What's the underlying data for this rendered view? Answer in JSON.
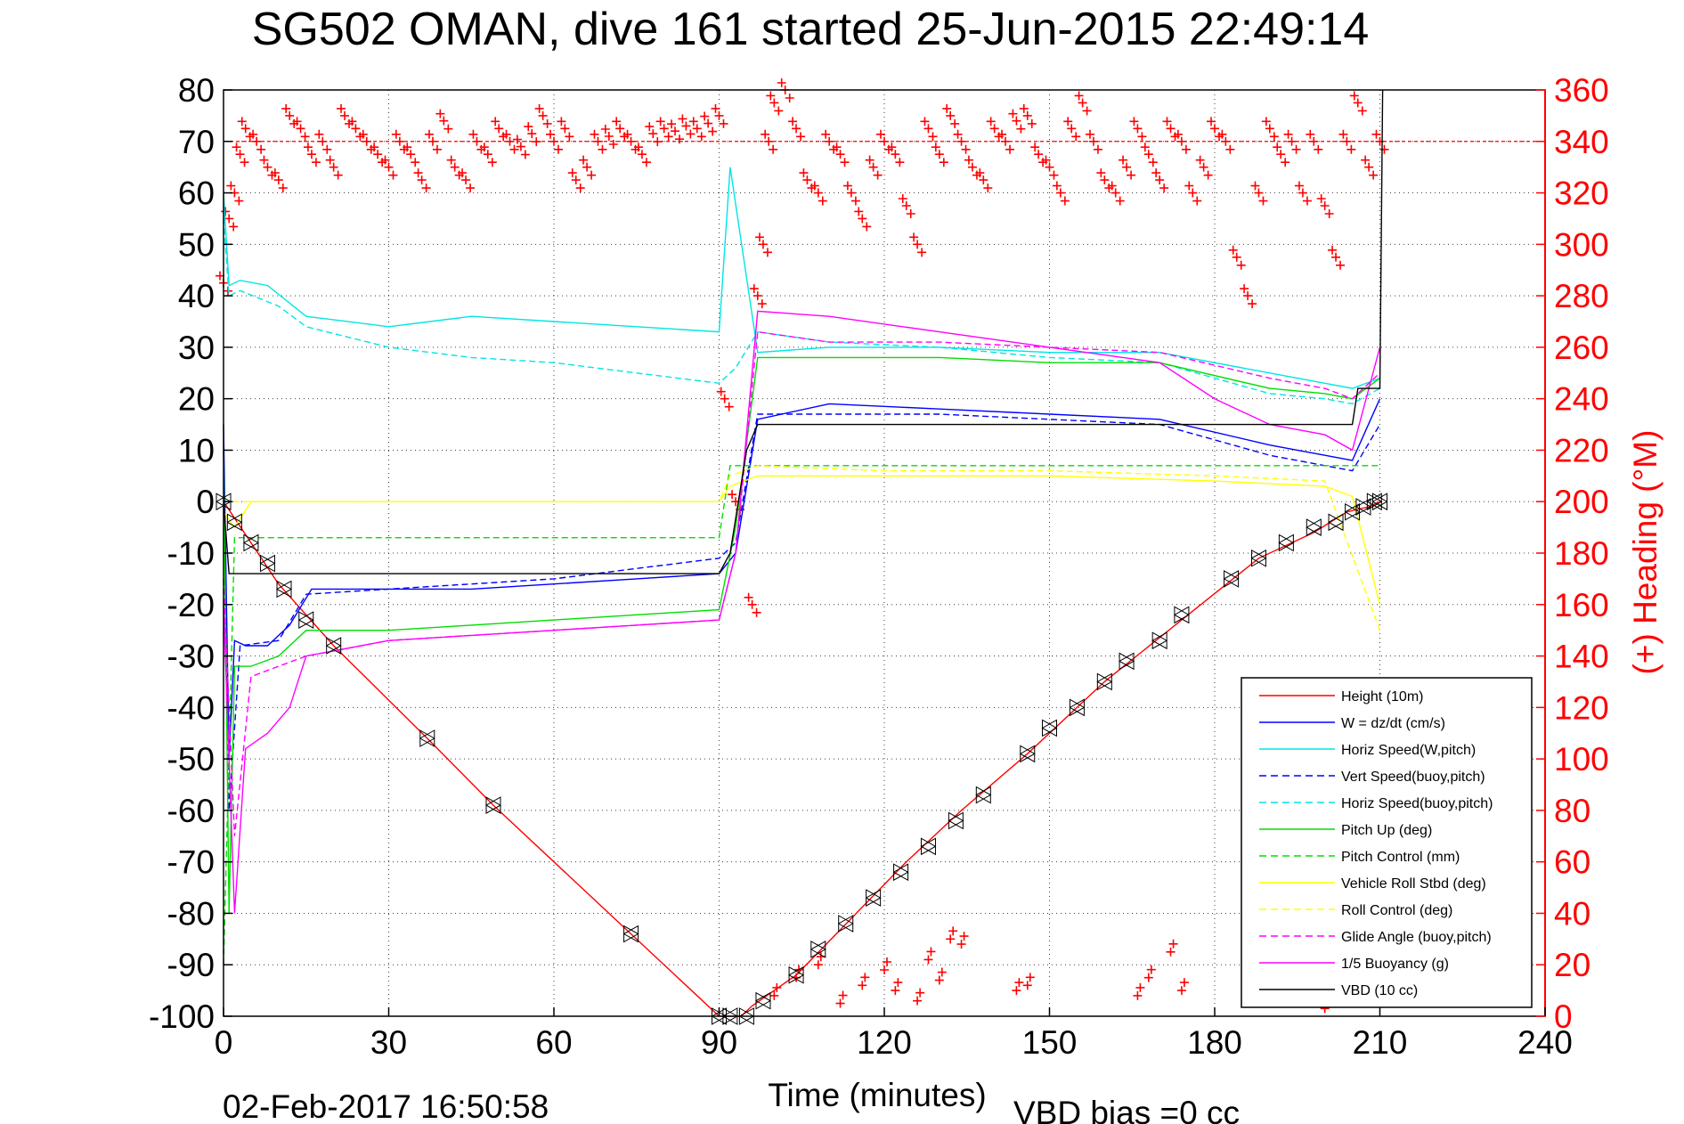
{
  "title": "SG502 OMAN, dive 161 started 25-Jun-2015 22:49:14",
  "footer_left": "02-Feb-2017 16:50:58",
  "footer_right": "VBD bias =0 cc",
  "chart_data": {
    "type": "line",
    "xlabel": "Time (minutes)",
    "ylabel": "",
    "y2label": "(+) Heading (°M)",
    "xlim": [
      0,
      240
    ],
    "ylim": [
      -100,
      80
    ],
    "y2lim": [
      0,
      360
    ],
    "xticks": [
      "0",
      "30",
      "60",
      "90",
      "120",
      "150",
      "180",
      "210",
      "240"
    ],
    "yticks": [
      "80",
      "70",
      "60",
      "50",
      "40",
      "30",
      "20",
      "10",
      "0",
      "-10",
      "-20",
      "-30",
      "-40",
      "-50",
      "-60",
      "-70",
      "-80",
      "-90",
      "-100"
    ],
    "y2ticks": [
      "360",
      "340",
      "320",
      "300",
      "280",
      "260",
      "240",
      "220",
      "200",
      "180",
      "160",
      "140",
      "120",
      "100",
      "80",
      "60",
      "40",
      "20",
      "0"
    ],
    "grid": true,
    "legend_position": "bottom-right",
    "series": [
      {
        "name": "Height (10m)",
        "color": "#ff0000",
        "style": "solid",
        "x": [
          0,
          10,
          20,
          37,
          49,
          74,
          90,
          94,
          96,
          104,
          114,
          124,
          134,
          146,
          160,
          174,
          188,
          198,
          204,
          208,
          210
        ],
        "y": [
          0,
          -16,
          -28,
          -46,
          -59,
          -84,
          -100,
          -100,
          -98,
          -92,
          -81,
          -70,
          -60,
          -49,
          -35,
          -23,
          -11,
          -6,
          -2,
          -1,
          0
        ]
      },
      {
        "name": "W = dz/dt (cm/s)",
        "color": "#0000ff",
        "style": "solid",
        "x": [
          0,
          1,
          2,
          4,
          8,
          12,
          16,
          30,
          45,
          60,
          75,
          90,
          93,
          97,
          110,
          130,
          150,
          170,
          190,
          200,
          205,
          210
        ],
        "y": [
          15,
          -50,
          -27,
          -28,
          -28,
          -24,
          -17,
          -17,
          -17,
          -16,
          -15,
          -14,
          -10,
          16,
          19,
          18,
          17,
          16,
          11,
          9,
          8,
          20
        ]
      },
      {
        "name": "Horiz Speed(W,pitch)",
        "color": "#00e5e5",
        "style": "solid",
        "x": [
          0,
          1,
          3,
          8,
          15,
          30,
          45,
          60,
          75,
          90,
          92,
          97,
          110,
          130,
          150,
          170,
          190,
          200,
          205,
          210
        ],
        "y": [
          60,
          42,
          43,
          42,
          36,
          34,
          36,
          35,
          34,
          33,
          65,
          29,
          30,
          30,
          29,
          29,
          25,
          23,
          22,
          24
        ]
      },
      {
        "name": "Vert Speed(buoy,pitch)",
        "color": "#0000ff",
        "style": "dashed",
        "x": [
          0,
          1,
          3,
          10,
          15,
          30,
          45,
          60,
          75,
          90,
          93,
          97,
          110,
          130,
          150,
          170,
          190,
          200,
          205,
          210
        ],
        "y": [
          10,
          -60,
          -28,
          -27,
          -18,
          -17,
          -16,
          -15,
          -13,
          -11,
          -8,
          17,
          17,
          17,
          16,
          15,
          9,
          7,
          6,
          15
        ]
      },
      {
        "name": "Horiz Speed(buoy,pitch)",
        "color": "#00e5e5",
        "style": "dashed",
        "x": [
          0,
          1,
          3,
          10,
          15,
          30,
          45,
          60,
          75,
          90,
          93,
          97,
          110,
          130,
          150,
          170,
          190,
          200,
          205,
          210
        ],
        "y": [
          55,
          40,
          41,
          38,
          34,
          30,
          28,
          27,
          25,
          23,
          26,
          33,
          31,
          30,
          28,
          27,
          21,
          20,
          19,
          22
        ]
      },
      {
        "name": "Pitch Up (deg)",
        "color": "#00dd00",
        "style": "solid",
        "x": [
          0,
          1,
          2,
          5,
          10,
          15,
          30,
          45,
          60,
          75,
          90,
          93,
          97,
          110,
          130,
          150,
          170,
          190,
          200,
          205,
          210
        ],
        "y": [
          10,
          -80,
          -32,
          -32,
          -30,
          -25,
          -25,
          -24,
          -23,
          -22,
          -21,
          -5,
          28,
          28,
          28,
          27,
          27,
          22,
          21,
          20,
          24
        ]
      },
      {
        "name": "Pitch Control (mm)",
        "color": "#00dd00",
        "style": "dashed",
        "x": [
          0,
          2,
          5,
          30,
          60,
          90,
          92,
          97,
          120,
          150,
          180,
          210
        ],
        "y": [
          -90,
          -7,
          -7,
          -7,
          -7,
          -7,
          7,
          7,
          7,
          7,
          7,
          7
        ]
      },
      {
        "name": "Vehicle Roll Stbd (deg)",
        "color": "#ffff00",
        "style": "solid",
        "x": [
          0,
          2,
          5,
          10,
          30,
          60,
          90,
          92,
          97,
          120,
          150,
          180,
          200,
          205,
          210
        ],
        "y": [
          -2,
          -5,
          0,
          0,
          0,
          0,
          0,
          3,
          5,
          5,
          5,
          4,
          3,
          1,
          -20
        ]
      },
      {
        "name": "Roll Control (deg)",
        "color": "#ffff00",
        "style": "dashed",
        "x": [
          0,
          2,
          5,
          30,
          60,
          90,
          92,
          97,
          120,
          150,
          180,
          200,
          210
        ],
        "y": [
          0,
          0,
          0,
          0,
          0,
          0,
          5,
          7,
          6,
          6,
          5,
          4,
          -25
        ]
      },
      {
        "name": "Glide Angle (buoy,pitch)",
        "color": "#ff00ff",
        "style": "dashed",
        "x": [
          0,
          2,
          5,
          10,
          15,
          30,
          45,
          60,
          75,
          90,
          93,
          97,
          110,
          130,
          150,
          170,
          190,
          200,
          205,
          210
        ],
        "y": [
          -15,
          -65,
          -34,
          -32,
          -30,
          -27,
          -26,
          -25,
          -24,
          -23,
          -10,
          33,
          31,
          31,
          30,
          29,
          24,
          22,
          20,
          25
        ]
      },
      {
        "name": "1/5 Buoyancy (g)",
        "color": "#ff00ff",
        "style": "solid",
        "x": [
          0,
          2,
          4,
          8,
          12,
          15,
          30,
          45,
          60,
          75,
          90,
          93,
          97,
          110,
          130,
          150,
          170,
          180,
          190,
          200,
          205,
          210
        ],
        "y": [
          -20,
          -80,
          -48,
          -45,
          -40,
          -30,
          -27,
          -26,
          -25,
          -24,
          -23,
          -10,
          37,
          36,
          33,
          30,
          27,
          20,
          15,
          13,
          10,
          30
        ]
      },
      {
        "name": "VBD (10 cc)",
        "color": "#000000",
        "style": "solid",
        "x": [
          0,
          1,
          5,
          30,
          60,
          90,
          92,
          95,
          97,
          100,
          140,
          180,
          205,
          206,
          210,
          210.5
        ],
        "y": [
          0,
          -14,
          -14,
          -14,
          -14,
          -14,
          -10,
          10,
          15,
          15,
          15,
          15,
          15,
          22,
          22,
          80
        ]
      }
    ],
    "heading": {
      "name": "(+) Heading (°M)",
      "color": "#ff0000",
      "marker": "+",
      "reference_line": 340,
      "x": [
        0,
        1,
        2,
        3,
        4,
        6,
        8,
        10,
        12,
        14,
        16,
        18,
        20,
        22,
        24,
        26,
        28,
        30,
        32,
        34,
        36,
        38,
        40,
        42,
        44,
        46,
        48,
        50,
        52,
        54,
        56,
        58,
        60,
        62,
        64,
        66,
        68,
        70,
        72,
        74,
        76,
        78,
        80,
        82,
        84,
        86,
        88,
        90,
        91,
        93,
        96,
        97,
        98,
        99,
        100,
        102,
        104,
        106,
        108,
        110,
        112,
        114,
        116,
        118,
        120,
        122,
        124,
        126,
        128,
        130,
        132,
        134,
        136,
        138,
        140,
        142,
        144,
        146,
        148,
        150,
        152,
        154,
        156,
        158,
        160,
        162,
        164,
        166,
        168,
        170,
        172,
        174,
        176,
        178,
        180,
        182,
        184,
        186,
        188,
        190,
        192,
        194,
        196,
        198,
        200,
        202,
        204,
        206,
        208,
        210
      ],
      "y": [
        285,
        310,
        320,
        335,
        345,
        340,
        330,
        325,
        350,
        345,
        335,
        340,
        330,
        350,
        345,
        340,
        335,
        330,
        340,
        335,
        325,
        340,
        348,
        330,
        325,
        340,
        335,
        345,
        340,
        338,
        343,
        350,
        340,
        345,
        325,
        330,
        340,
        342,
        345,
        340,
        335,
        343,
        345,
        344,
        346,
        345,
        347,
        350,
        240,
        200,
        160,
        280,
        300,
        340,
        355,
        360,
        345,
        325,
        320,
        340,
        335,
        320,
        310,
        330,
        340,
        335,
        315,
        300,
        345,
        335,
        350,
        340,
        330,
        325,
        345,
        340,
        348,
        350,
        335,
        330,
        320,
        345,
        355,
        340,
        325,
        320,
        330,
        345,
        335,
        325,
        345,
        340,
        320,
        330,
        345,
        340,
        295,
        280,
        320,
        345,
        335,
        340,
        320,
        340,
        315,
        295,
        340,
        355,
        330,
        340
      ]
    },
    "heading_low_clusters": {
      "x": [
        100,
        104,
        108,
        112,
        116,
        120,
        122,
        126,
        128,
        130,
        132,
        134,
        144,
        146,
        166,
        168,
        172,
        174,
        200,
        202,
        208
      ],
      "y": [
        8,
        15,
        20,
        5,
        12,
        18,
        10,
        6,
        22,
        14,
        30,
        28,
        10,
        12,
        8,
        15,
        25,
        10,
        3,
        5,
        6
      ]
    },
    "waypoints": {
      "x": [
        0,
        2,
        5,
        8,
        11,
        15,
        20,
        37,
        49,
        74,
        90,
        92,
        95,
        98,
        104,
        108,
        113,
        118,
        123,
        128,
        133,
        138,
        146,
        150,
        155,
        160,
        164,
        170,
        174,
        183,
        188,
        193,
        198,
        202,
        205,
        207,
        209,
        210
      ],
      "y": [
        0,
        -4,
        -8,
        -12,
        -17,
        -23,
        -28,
        -46,
        -59,
        -84,
        -100,
        -100,
        -100,
        -97,
        -92,
        -87,
        -82,
        -77,
        -72,
        -67,
        -62,
        -57,
        -49,
        -44,
        -40,
        -35,
        -31,
        -27,
        -22,
        -15,
        -11,
        -8,
        -5,
        -4,
        -2,
        -1,
        0,
        0
      ]
    }
  }
}
